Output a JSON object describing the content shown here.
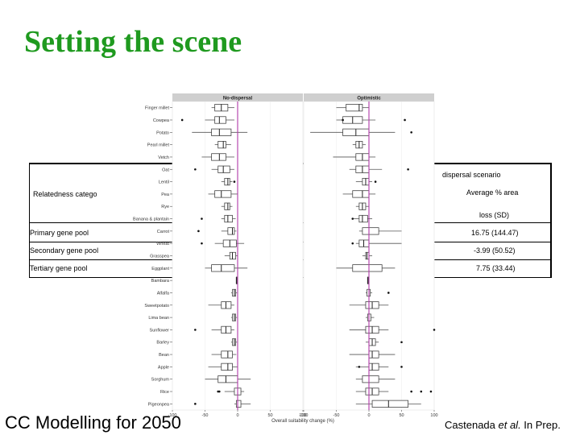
{
  "slide": {
    "title": "Setting the scene",
    "footer_left": "CC Modelling for 2050",
    "footer_right_author": "Castenada ",
    "footer_right_etal": "et al.",
    "footer_right_rest": " In Prep."
  },
  "table": {
    "header_scenario": "dispersal scenario",
    "header_category": "Relatedness catego",
    "header_avg": "Average % area",
    "header_loss": "loss (SD)",
    "rows": [
      {
        "label": "Primary gene pool",
        "value": "16.75 (144.47)"
      },
      {
        "label": "Secondary gene pool",
        "value": "-3.99 (50.52)"
      },
      {
        "label": "Tertiary gene pool",
        "value": "7.75 (33.44)"
      }
    ]
  },
  "chart_data": {
    "type": "boxplot",
    "xlabel": "Overall suitability change (%)",
    "panels": [
      "No-dispersal",
      "Optimistic"
    ],
    "xlim": [
      -100,
      100
    ],
    "ticks": [
      -100,
      -50,
      0,
      50,
      100
    ],
    "categories": [
      "Finger millet",
      "Cowpea",
      "Potato",
      "Pearl millet",
      "Vetch",
      "Oat",
      "Lentil",
      "Pea",
      "Rye",
      "Banana & plantain",
      "Carrot",
      "Wheat",
      "Grasspea",
      "Eggplant",
      "Bambara",
      "Alfalfa",
      "Sweetpotato",
      "Lima bean",
      "Sunflower",
      "Barley",
      "Bean",
      "Apple",
      "Sorghum",
      "Rice",
      "Pigeonpea"
    ],
    "no_dispersal": [
      [
        -40,
        -35,
        -25,
        -15,
        -5
      ],
      [
        -50,
        -35,
        -28,
        -18,
        -5
      ],
      [
        -70,
        -40,
        -28,
        -10,
        15
      ],
      [
        -35,
        -30,
        -22,
        -18,
        -10
      ],
      [
        -55,
        -40,
        -28,
        -18,
        -5
      ],
      [
        -40,
        -30,
        -22,
        -12,
        -5
      ],
      [
        -25,
        -20,
        -15,
        -12,
        -8
      ],
      [
        -45,
        -35,
        -25,
        -10,
        0
      ],
      [
        -25,
        -20,
        -15,
        -12,
        -8
      ],
      [
        -25,
        -20,
        -15,
        -8,
        -3
      ],
      [
        -25,
        -15,
        -8,
        -5,
        -2
      ],
      [
        -35,
        -22,
        -12,
        -2,
        10
      ],
      [
        -20,
        -12,
        -8,
        -3,
        0
      ],
      [
        -50,
        -40,
        -25,
        -5,
        15
      ],
      [
        -2,
        -2,
        -2,
        -2,
        -2
      ],
      [
        -10,
        -8,
        -5,
        -3,
        -1
      ],
      [
        -45,
        -25,
        -18,
        -10,
        -5
      ],
      [
        -10,
        -8,
        -5,
        -3,
        -1
      ],
      [
        -40,
        -25,
        -18,
        -10,
        -5
      ],
      [
        -10,
        -8,
        -5,
        -3,
        -1
      ],
      [
        -40,
        -25,
        -15,
        -8,
        -2
      ],
      [
        -45,
        -25,
        -15,
        -8,
        0
      ],
      [
        -50,
        -30,
        -18,
        0,
        20
      ],
      [
        -20,
        -5,
        0,
        5,
        10
      ],
      [
        -5,
        -2,
        0,
        5,
        20
      ]
    ],
    "optimistic": [
      [
        -50,
        -35,
        -15,
        -10,
        0
      ],
      [
        -50,
        -40,
        -25,
        -10,
        10
      ],
      [
        -90,
        -40,
        -20,
        0,
        40
      ],
      [
        -25,
        -20,
        -15,
        -10,
        -5
      ],
      [
        -55,
        -20,
        -10,
        0,
        10
      ],
      [
        -30,
        -20,
        -10,
        0,
        20
      ],
      [
        -20,
        -10,
        -5,
        0,
        5
      ],
      [
        -40,
        -25,
        -10,
        0,
        10
      ],
      [
        -20,
        -15,
        -10,
        -5,
        0
      ],
      [
        -25,
        -15,
        -10,
        -2,
        5
      ],
      [
        -15,
        -10,
        0,
        15,
        50
      ],
      [
        -20,
        -15,
        -8,
        0,
        50
      ],
      [
        -10,
        -5,
        -3,
        0,
        5
      ],
      [
        -50,
        -25,
        0,
        20,
        40
      ],
      [
        -2,
        -2,
        -2,
        -2,
        -2
      ],
      [
        -5,
        -3,
        0,
        2,
        5
      ],
      [
        -30,
        -5,
        5,
        15,
        30
      ],
      [
        -5,
        -2,
        0,
        3,
        8
      ],
      [
        -30,
        -5,
        5,
        15,
        30
      ],
      [
        -5,
        0,
        5,
        10,
        15
      ],
      [
        -30,
        0,
        5,
        15,
        40
      ],
      [
        -20,
        0,
        5,
        15,
        30
      ],
      [
        -20,
        -10,
        0,
        15,
        40
      ],
      [
        -20,
        -5,
        5,
        15,
        30
      ],
      [
        -20,
        5,
        30,
        60,
        80
      ]
    ],
    "outliers_no_dispersal": [
      [
        1,
        -85
      ],
      [
        5,
        -65
      ],
      [
        6,
        -5
      ],
      [
        9,
        -55
      ],
      [
        10,
        -60
      ],
      [
        11,
        -55
      ],
      [
        18,
        -65
      ],
      [
        23,
        -30
      ],
      [
        23,
        -28
      ],
      [
        24,
        -65
      ]
    ],
    "outliers_optimistic": [
      [
        1,
        -40
      ],
      [
        1,
        55
      ],
      [
        2,
        65
      ],
      [
        5,
        60
      ],
      [
        6,
        10
      ],
      [
        9,
        -25
      ],
      [
        11,
        -25
      ],
      [
        15,
        30
      ],
      [
        18,
        100
      ],
      [
        19,
        50
      ],
      [
        21,
        -15
      ],
      [
        21,
        50
      ],
      [
        23,
        65
      ],
      [
        23,
        80
      ],
      [
        23,
        95
      ]
    ]
  }
}
